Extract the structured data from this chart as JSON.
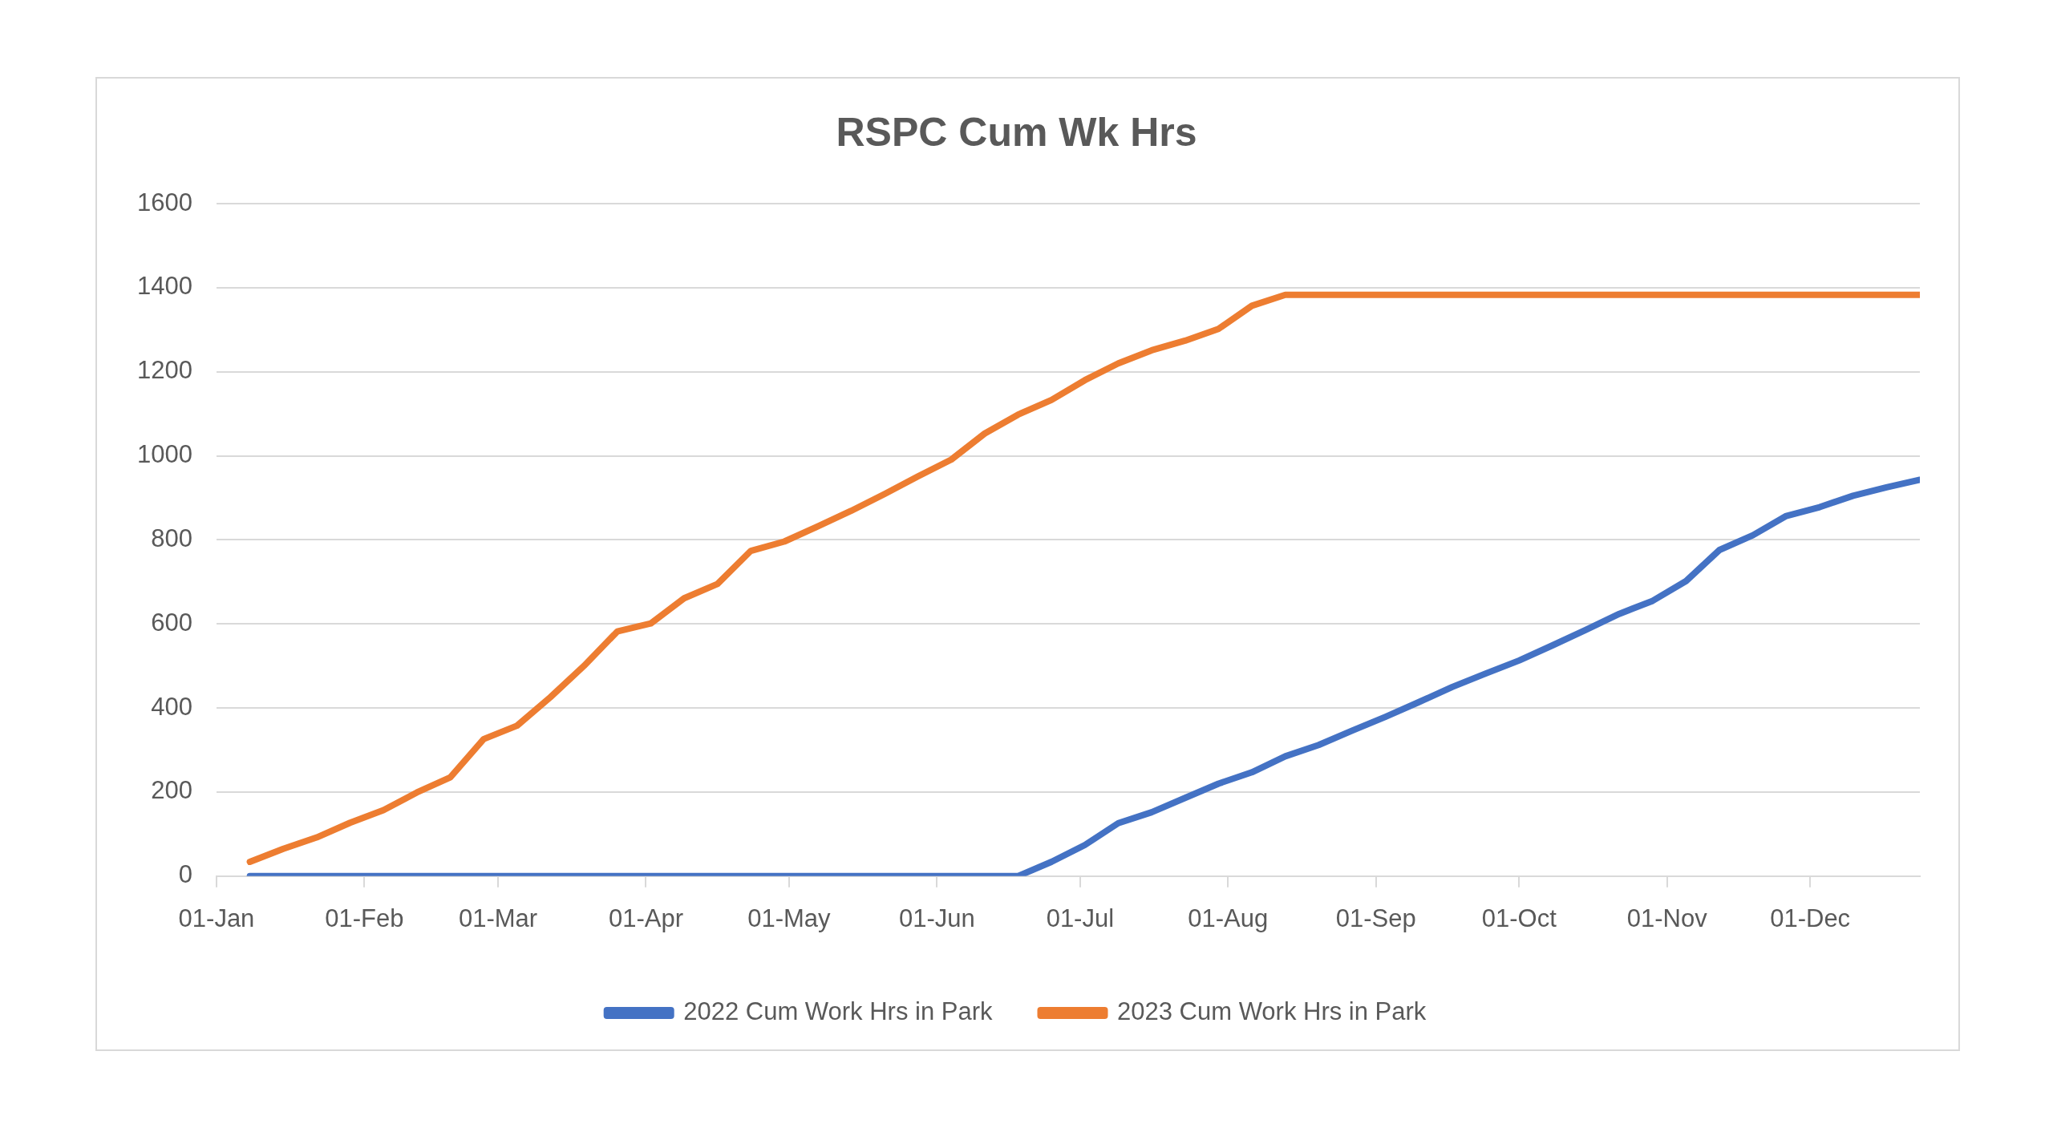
{
  "chart_data": {
    "type": "line",
    "title": "RSPC Cum Wk Hrs",
    "x": [
      "--01-08",
      "--01-15",
      "--01-22",
      "--01-29",
      "--02-05",
      "--02-12",
      "--02-19",
      "--02-26",
      "--03-05",
      "--03-12",
      "--03-19",
      "--03-26",
      "--04-02",
      "--04-09",
      "--04-16",
      "--04-23",
      "--04-30",
      "--05-07",
      "--05-14",
      "--05-21",
      "--05-28",
      "--06-04",
      "--06-11",
      "--06-18",
      "--06-25",
      "--07-02",
      "--07-09",
      "--07-16",
      "--07-23",
      "--07-30",
      "--08-06",
      "--08-13",
      "--08-20",
      "--08-27",
      "--09-03",
      "--09-10",
      "--09-17",
      "--09-24",
      "--10-01",
      "--10-08",
      "--10-15",
      "--10-22",
      "--10-29",
      "--11-05",
      "--11-12",
      "--11-19",
      "--11-26",
      "--12-03",
      "--12-10",
      "--12-17",
      "--12-24"
    ],
    "series": [
      {
        "name": "2022 Cum Work Hrs in Park",
        "color": "#4472c4",
        "values": [
          0,
          0,
          0,
          0,
          0,
          0,
          0,
          0,
          0,
          0,
          0,
          0,
          0,
          0,
          0,
          0,
          0,
          0,
          0,
          0,
          0,
          0,
          0,
          0,
          34,
          74,
          126,
          152,
          186,
          220,
          247,
          285,
          312,
          346,
          379,
          414,
          450,
          482,
          513,
          549,
          586,
          624,
          655,
          702,
          776,
          811,
          857,
          878,
          905,
          925,
          943
        ]
      },
      {
        "name": "2023 Cum Work Hrs in Park",
        "color": "#ed7d31",
        "values": [
          34,
          65,
          92,
          127,
          157,
          199,
          235,
          326,
          358,
          426,
          500,
          582,
          601,
          661,
          695,
          774,
          796,
          832,
          869,
          909,
          951,
          991,
          1053,
          1098,
          1133,
          1180,
          1220,
          1251,
          1274,
          1302,
          1357,
          1383,
          1383,
          1383,
          1383,
          1383,
          1383,
          1383,
          1383,
          1383,
          1383,
          1383,
          1383,
          1383,
          1383,
          1383,
          1383,
          1383,
          1383,
          1383,
          1383
        ]
      }
    ],
    "xlim": [
      "--01-01",
      "--12-24"
    ],
    "xticks": [
      {
        "value": "--01-01",
        "label": "01-Jan"
      },
      {
        "value": "--02-01",
        "label": "01-Feb"
      },
      {
        "value": "--03-01",
        "label": "01-Mar"
      },
      {
        "value": "--04-01",
        "label": "01-Apr"
      },
      {
        "value": "--05-01",
        "label": "01-May"
      },
      {
        "value": "--06-01",
        "label": "01-Jun"
      },
      {
        "value": "--07-01",
        "label": "01-Jul"
      },
      {
        "value": "--08-01",
        "label": "01-Aug"
      },
      {
        "value": "--09-01",
        "label": "01-Sep"
      },
      {
        "value": "--10-01",
        "label": "01-Oct"
      },
      {
        "value": "--11-01",
        "label": "01-Nov"
      },
      {
        "value": "--12-01",
        "label": "01-Dec"
      }
    ],
    "ylim": [
      0,
      1600
    ],
    "yticks": [
      0,
      200,
      400,
      600,
      800,
      1000,
      1200,
      1400,
      1600
    ],
    "grid": "y",
    "legend": "bottom",
    "marker": "none",
    "line_style": "solid"
  }
}
